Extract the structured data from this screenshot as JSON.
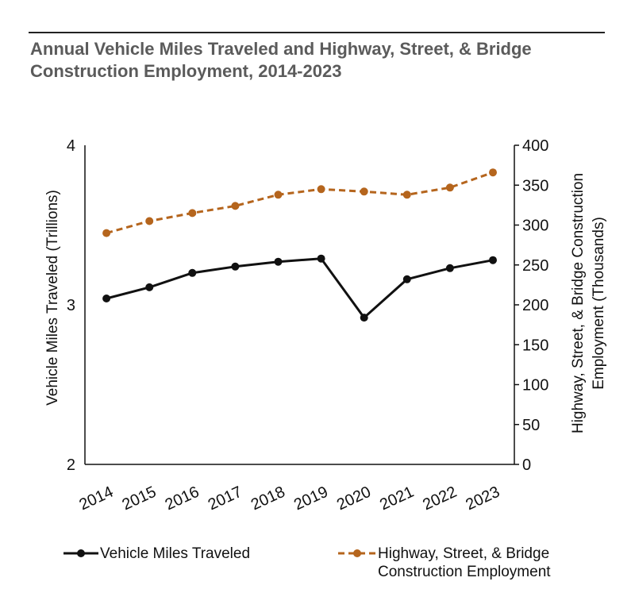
{
  "chart_data": {
    "type": "line",
    "title_lines": [
      "Annual Vehicle Miles Traveled and Highway, Street, & Bridge",
      "Construction Employment, 2014-2023"
    ],
    "x": [
      "2014",
      "2015",
      "2016",
      "2017",
      "2018",
      "2019",
      "2020",
      "2021",
      "2022",
      "2023"
    ],
    "y_left": {
      "label": "Vehicle Miles Traveled (Trillions)",
      "ylim": [
        2,
        4
      ],
      "ticks": [
        "2",
        "3",
        "4"
      ]
    },
    "y_right": {
      "label_lines": [
        "Highway, Street, & Bridge Construction",
        "Employment (Thousands)"
      ],
      "ylim": [
        0,
        400
      ],
      "ticks": [
        "0",
        "50",
        "100",
        "150",
        "200",
        "250",
        "300",
        "350",
        "400"
      ]
    },
    "series": [
      {
        "name": "Vehicle Miles Traveled",
        "axis": "left",
        "color": "#111111",
        "style": "solid",
        "values": [
          3.04,
          3.11,
          3.2,
          3.24,
          3.27,
          3.29,
          2.92,
          3.16,
          3.23,
          3.28
        ]
      },
      {
        "name_lines": [
          "Highway, Street, & Bridge",
          "Construction Employment"
        ],
        "axis": "right",
        "color": "#b5651d",
        "style": "dashed",
        "values": [
          290,
          305,
          315,
          324,
          338,
          345,
          342,
          338,
          347,
          366
        ]
      }
    ],
    "grid": false,
    "legend": "bottom"
  }
}
